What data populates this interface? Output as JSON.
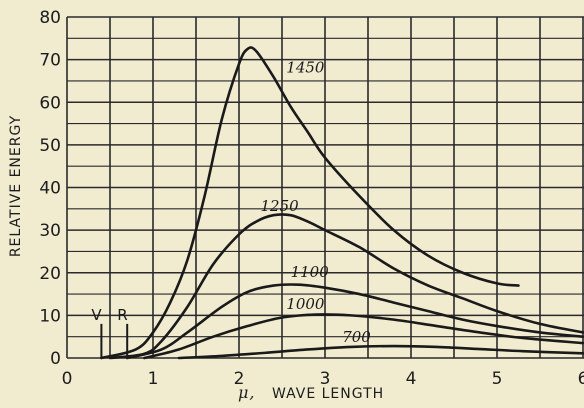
{
  "chart_data": {
    "type": "line",
    "xlabel_symbol": "μ,",
    "xlabel": "WAVE LENGTH",
    "ylabel": "RELATIVE ENERGY",
    "xlim": [
      0,
      6
    ],
    "ylim": [
      0,
      80
    ],
    "xticks": [
      "0",
      "1",
      "2",
      "3",
      "4",
      "5",
      "6"
    ],
    "yticks": [
      "0",
      "10",
      "20",
      "30",
      "40",
      "50",
      "60",
      "70",
      "80"
    ],
    "grid": true,
    "series": [
      {
        "name": "1450",
        "x": [
          0.4,
          0.8,
          1.0,
          1.2,
          1.4,
          1.6,
          1.8,
          2.0,
          2.1,
          2.2,
          2.4,
          2.6,
          2.8,
          3.0,
          3.4,
          3.8,
          4.2,
          4.6,
          5.0,
          5.25
        ],
        "y": [
          0,
          2,
          6,
          13,
          23,
          38,
          56,
          69,
          72.5,
          72,
          66,
          59,
          53,
          47,
          38,
          30,
          24,
          20,
          17.5,
          17
        ]
      },
      {
        "name": "1250",
        "x": [
          0.5,
          0.9,
          1.1,
          1.4,
          1.7,
          2.0,
          2.2,
          2.4,
          2.6,
          2.8,
          3.0,
          3.4,
          3.8,
          4.2,
          4.6,
          5.0,
          5.5,
          6.0
        ],
        "y": [
          0,
          1,
          4,
          12,
          22,
          29,
          32,
          33.5,
          33.5,
          32,
          30,
          26,
          21,
          17,
          14,
          11,
          8,
          6
        ]
      },
      {
        "name": "1100",
        "x": [
          0.7,
          1.1,
          1.4,
          1.8,
          2.1,
          2.4,
          2.7,
          3.0,
          3.4,
          3.8,
          4.2,
          4.6,
          5.0,
          5.5,
          6.0
        ],
        "y": [
          0,
          2,
          6,
          12,
          15.5,
          17,
          17.2,
          16.5,
          15,
          13,
          11,
          9,
          7.5,
          6,
          5
        ]
      },
      {
        "name": "1000",
        "x": [
          0.9,
          1.3,
          1.7,
          2.1,
          2.5,
          2.9,
          3.3,
          3.8,
          4.3,
          4.8,
          5.3,
          6.0
        ],
        "y": [
          0,
          2,
          5,
          7.5,
          9.5,
          10.2,
          10,
          9,
          7.5,
          6,
          4.7,
          3.5
        ]
      },
      {
        "name": "700",
        "x": [
          1.3,
          1.8,
          2.3,
          2.8,
          3.3,
          3.8,
          4.3,
          4.8,
          5.3,
          6.0
        ],
        "y": [
          0,
          0.5,
          1.2,
          2,
          2.6,
          2.8,
          2.6,
          2.1,
          1.6,
          1.1
        ]
      }
    ],
    "annotations": [
      {
        "label": "V",
        "x": 0.4
      },
      {
        "label": "R",
        "x": 0.7
      }
    ]
  }
}
